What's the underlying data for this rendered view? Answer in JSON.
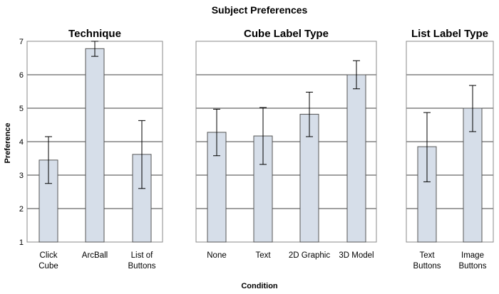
{
  "chart_data": {
    "type": "bar",
    "title": "Subject Preferences",
    "xlabel": "Condition",
    "ylabel": "Preference",
    "ylim": [
      1,
      7
    ],
    "yticks": [
      "1",
      "2",
      "3",
      "4",
      "5",
      "6",
      "7"
    ],
    "grid": true,
    "legend": "none",
    "colors": {
      "bar_fill": "#d6dee9",
      "bar_stroke": "#555555",
      "grid": "#000000",
      "frame": "#888888"
    },
    "panels": [
      {
        "title": "Technique",
        "categories": [
          [
            "Click",
            "Cube"
          ],
          [
            "ArcBall"
          ],
          [
            "List of",
            "Buttons"
          ]
        ],
        "values": [
          3.45,
          6.78,
          3.62
        ],
        "error_low": [
          2.75,
          6.55,
          2.6
        ],
        "error_high": [
          4.15,
          7.0,
          4.63
        ]
      },
      {
        "title": "Cube Label Type",
        "categories": [
          [
            "None"
          ],
          [
            "Text"
          ],
          [
            "2D Graphic"
          ],
          [
            "3D Model"
          ]
        ],
        "values": [
          4.28,
          4.17,
          4.82,
          6.0
        ],
        "error_low": [
          3.58,
          3.32,
          4.15,
          5.58
        ],
        "error_high": [
          4.97,
          5.02,
          5.48,
          6.42
        ]
      },
      {
        "title": "List Label Type",
        "categories": [
          [
            "Text",
            "Buttons"
          ],
          [
            "Image",
            "Buttons"
          ]
        ],
        "values": [
          3.85,
          5.0
        ],
        "error_low": [
          2.8,
          4.3
        ],
        "error_high": [
          4.87,
          5.68
        ]
      }
    ]
  }
}
